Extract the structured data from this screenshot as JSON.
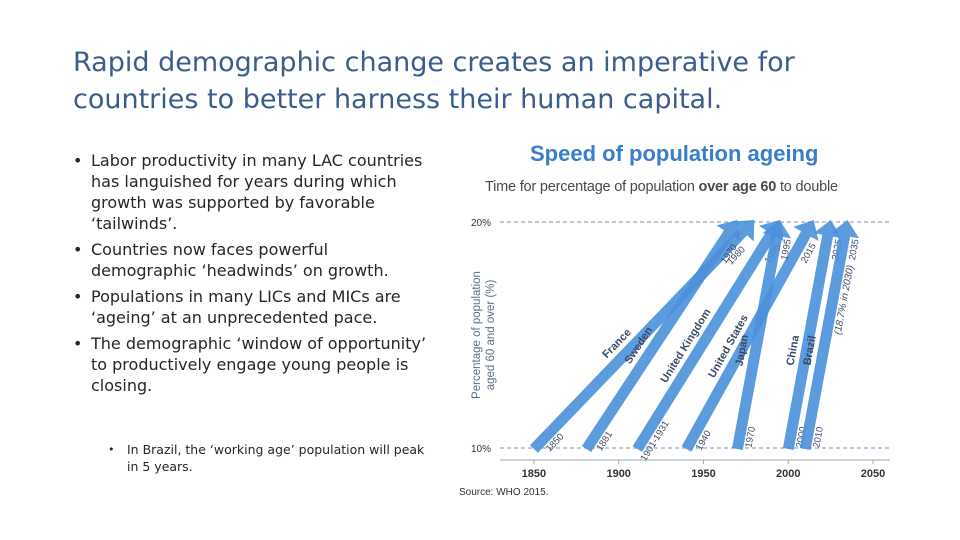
{
  "slide": {
    "title": "Rapid demographic change creates an imperative for countries to better harness their human capital.",
    "bullets": [
      "Labor productivity in many LAC countries has languished for years during which growth was supported by favorable ‘tailwinds’.",
      "Countries now faces powerful demographic ‘headwinds’ on growth.",
      "Populations in many LICs and MICs are ‘ageing’ at an unprecedented pace.",
      "The demographic ‘window of opportunity’ to productively engage young people is closing."
    ],
    "sub_bullets": [
      "In Brazil, the ‘working age’ population will peak in 5 years."
    ],
    "source": "Source: WHO 2015."
  },
  "colors": {
    "title": "#3b5d8c",
    "chart_title": "#3a7dc9",
    "arrow": "#4a90d9",
    "grid": "#9aa9bb",
    "axis_text": "#333333"
  },
  "chart_data": {
    "type": "arrow-timeline",
    "title": "Speed of population ageing",
    "subtitle_parts": [
      "Time for percentage of population ",
      "over age 60",
      " to double"
    ],
    "ylabel": "Percentage of population aged 60 and over (%)",
    "ylabel_lines": [
      "Percentage of population",
      "aged 60 and over (%)"
    ],
    "y_ticks": [
      {
        "value": 10,
        "label": "10%"
      },
      {
        "value": 20,
        "label": "20%"
      }
    ],
    "ylim": [
      10,
      20
    ],
    "x_ticks": [
      1850,
      1900,
      1950,
      2000,
      2050
    ],
    "xlim": [
      1830,
      2060
    ],
    "series": [
      {
        "name": "France",
        "start": 1850,
        "end": 1980,
        "start_label": "1850",
        "end_label": "1980"
      },
      {
        "name": "Sweden",
        "start": 1881,
        "end": 1970,
        "start_label": "1881",
        "end_label": "1970"
      },
      {
        "name": "United Kingdom",
        "start": 1911,
        "end": 1995,
        "start_label": "1901-1931",
        "end_label": "1995"
      },
      {
        "name": "United States",
        "start": 1940,
        "end": 2015,
        "start_label": "1940",
        "end_label": "2015"
      },
      {
        "name": "Japan",
        "start": 1970,
        "end": 1995,
        "start_label": "1970",
        "end_label": "1995"
      },
      {
        "name": "China",
        "start": 2000,
        "end": 2025,
        "start_label": "2000",
        "end_label": "2025"
      },
      {
        "name": "Brazil",
        "start": 2010,
        "end": 2035,
        "start_label": "2010",
        "end_label": "2035"
      }
    ],
    "annotation": "(18.7% in 2030)"
  }
}
